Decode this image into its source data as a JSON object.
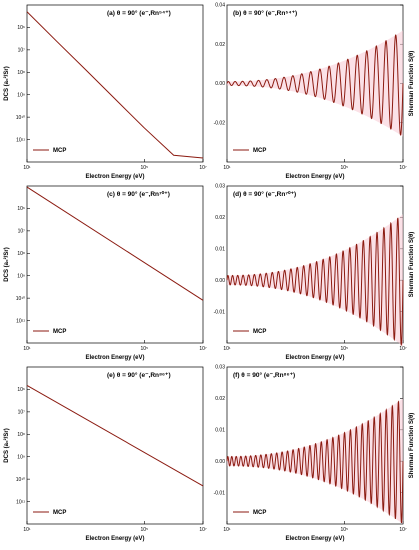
{
  "figure": {
    "left_ylabel": "DCS (a₀²/Sr)",
    "right_ylabel": "Sherman Function S(θ)",
    "xlabel": "Electron Energy (eV)",
    "colors": {
      "curve": "#8b1a10",
      "band": "#f7c8d3"
    }
  },
  "chart_data": [
    {
      "id": "a",
      "type": "line",
      "title": "(a) θ = 90° (e⁻,Rn⁵⁴⁺)",
      "xscale": "log",
      "yscale": "log",
      "xlim": [
        10,
        10000000
      ],
      "ylim": [
        1e-12,
        1e-05
      ],
      "xticks": [
        {
          "v": 10,
          "t": "10¹"
        },
        {
          "v": 100000,
          "t": "10⁵"
        },
        {
          "v": 10000000,
          "t": "10⁷"
        }
      ],
      "yticks": [
        {
          "v": 1e-06,
          "t": "10⁶"
        },
        {
          "v": 1e-07,
          "t": "10⁷"
        },
        {
          "v": 1e-08,
          "t": "10⁸"
        },
        {
          "v": 1e-09,
          "t": "10⁹"
        },
        {
          "v": 1e-10,
          "t": "10¹⁰"
        },
        {
          "v": 1e-11,
          "t": "10¹¹"
        }
      ],
      "legend": [
        "MCP"
      ],
      "legend_position": "lower-left",
      "series": [
        {
          "name": "MCP",
          "x": [
            10,
            100,
            1000,
            10000,
            100000,
            1000000,
            10000000
          ],
          "y": [
            5e-06,
            2.5e-07,
            1.3e-08,
            6.5e-10,
            3.3e-11,
            2e-12,
            1.5e-12
          ]
        }
      ]
    },
    {
      "id": "b",
      "type": "line",
      "title": "(b) θ = 90° (e⁻,Rn⁵⁴⁺)",
      "xscale": "log",
      "yscale": "linear",
      "xlim": [
        10,
        10000000
      ],
      "ylim": [
        -0.04,
        0.04
      ],
      "xticks": [
        {
          "v": 10,
          "t": "10¹"
        },
        {
          "v": 100000,
          "t": "10⁵"
        },
        {
          "v": 10000000,
          "t": "10⁷"
        }
      ],
      "yticks": [
        {
          "v": -0.02,
          "t": "-0.02"
        },
        {
          "v": 0,
          "t": "0.00"
        },
        {
          "v": 0.02,
          "t": "0.02"
        },
        {
          "v": 0.04,
          "t": "0.04"
        }
      ],
      "legend": [
        "MCP"
      ],
      "legend_position": "lower-left",
      "series": [
        {
          "name": "MCP",
          "oscillation": {
            "start": 10,
            "end": 10000000,
            "cycles": 20,
            "amp_start": 0.001,
            "amp_end": 0.027
          }
        }
      ]
    },
    {
      "id": "c",
      "type": "line",
      "title": "(c) θ = 90° (e⁻,Rn⁷⁰⁺)",
      "xscale": "log",
      "yscale": "log",
      "xlim": [
        10,
        10000000
      ],
      "ylim": [
        1e-12,
        1e-05
      ],
      "xticks": [
        {
          "v": 10,
          "t": "10¹"
        },
        {
          "v": 100000,
          "t": "10⁵"
        },
        {
          "v": 10000000,
          "t": "10⁷"
        }
      ],
      "yticks": [
        {
          "v": 1e-06,
          "t": "10⁶"
        },
        {
          "v": 1e-07,
          "t": "10⁷"
        },
        {
          "v": 1e-08,
          "t": "10⁸"
        },
        {
          "v": 1e-09,
          "t": "10⁹"
        },
        {
          "v": 1e-10,
          "t": "10¹⁰"
        },
        {
          "v": 1e-11,
          "t": "10¹¹"
        }
      ],
      "legend": [
        "MCP"
      ],
      "legend_position": "lower-left",
      "series": [
        {
          "name": "MCP",
          "x": [
            10,
            10000000
          ],
          "y": [
            9e-06,
            8e-11
          ]
        }
      ]
    },
    {
      "id": "d",
      "type": "line",
      "title": "(d) θ = 90° (e⁻,Rn⁷⁰⁺)",
      "xscale": "log",
      "yscale": "linear",
      "xlim": [
        10,
        10000000
      ],
      "ylim": [
        -0.02,
        0.03
      ],
      "xticks": [
        {
          "v": 10,
          "t": "10¹"
        },
        {
          "v": 100000,
          "t": "10⁵"
        },
        {
          "v": 10000000,
          "t": "10⁷"
        }
      ],
      "yticks": [
        {
          "v": -0.01,
          "t": "-0.01"
        },
        {
          "v": 0,
          "t": "0.00"
        },
        {
          "v": 0.01,
          "t": "0.01"
        },
        {
          "v": 0.02,
          "t": "0.02"
        },
        {
          "v": 0.03,
          "t": "0.03"
        }
      ],
      "legend": [
        "MCP"
      ],
      "legend_position": "lower-left",
      "series": [
        {
          "name": "MCP",
          "oscillation": {
            "start": 10,
            "end": 10000000,
            "cycles": 28,
            "amp_start": 0.0015,
            "amp_end": 0.021
          }
        }
      ]
    },
    {
      "id": "e",
      "type": "line",
      "title": "(e) θ = 90° (e⁻,Rn⁸⁶⁺)",
      "xscale": "log",
      "yscale": "log",
      "xlim": [
        10,
        10000000
      ],
      "ylim": [
        1e-12,
        1e-05
      ],
      "xticks": [
        {
          "v": 10,
          "t": "10¹"
        },
        {
          "v": 100000,
          "t": "10⁵"
        },
        {
          "v": 10000000,
          "t": "10⁷"
        }
      ],
      "yticks": [
        {
          "v": 1e-06,
          "t": "10⁶"
        },
        {
          "v": 1e-07,
          "t": "10⁷"
        },
        {
          "v": 1e-08,
          "t": "10⁸"
        },
        {
          "v": 1e-09,
          "t": "10⁹"
        },
        {
          "v": 1e-10,
          "t": "10¹⁰"
        },
        {
          "v": 1e-11,
          "t": "10¹¹"
        }
      ],
      "legend": [
        "MCP"
      ],
      "legend_position": "lower-left",
      "series": [
        {
          "name": "MCP",
          "x": [
            10,
            10000000
          ],
          "y": [
            1.5e-06,
            5e-11
          ]
        }
      ]
    },
    {
      "id": "f",
      "type": "line",
      "title": "(f) θ = 90° (e⁻,Rn⁸⁶⁺)",
      "xscale": "log",
      "yscale": "linear",
      "xlim": [
        10,
        10000000
      ],
      "ylim": [
        -0.02,
        0.03
      ],
      "xticks": [
        {
          "v": 10,
          "t": "10¹"
        },
        {
          "v": 100000,
          "t": "10⁵"
        },
        {
          "v": 10000000,
          "t": "10⁷"
        }
      ],
      "yticks": [
        {
          "v": -0.01,
          "t": "-0.01"
        },
        {
          "v": 0,
          "t": "0.00"
        },
        {
          "v": 0.01,
          "t": "0.01"
        },
        {
          "v": 0.02,
          "t": "0.02"
        },
        {
          "v": 0.03,
          "t": "0.03"
        }
      ],
      "legend": [
        "MCP"
      ],
      "legend_position": "lower-left",
      "series": [
        {
          "name": "MCP",
          "oscillation": {
            "start": 10,
            "end": 10000000,
            "cycles": 32,
            "amp_start": 0.0015,
            "amp_end": 0.02
          }
        }
      ]
    }
  ]
}
